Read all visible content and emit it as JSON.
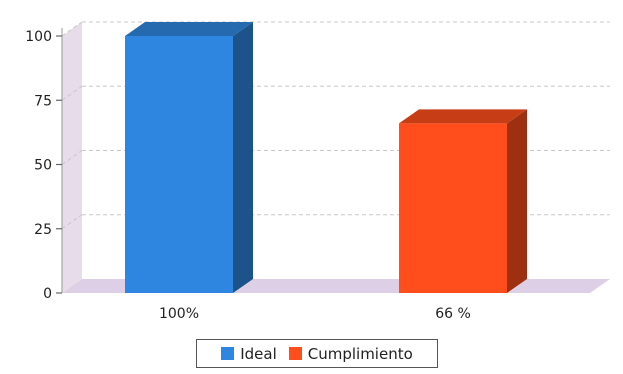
{
  "chart_data": {
    "type": "bar",
    "categories": [
      "100%",
      "66 %"
    ],
    "series": [
      {
        "name": "Ideal",
        "values": [
          100,
          null
        ],
        "color": "#2f86e0"
      },
      {
        "name": "Cumplimiento",
        "values": [
          null,
          66
        ],
        "color": "#ff4e1c"
      }
    ],
    "ylim": [
      0,
      100
    ],
    "yticks": [
      0,
      25,
      50,
      75,
      100
    ],
    "grid": true,
    "legend_position": "bottom-center",
    "style": "3d"
  }
}
